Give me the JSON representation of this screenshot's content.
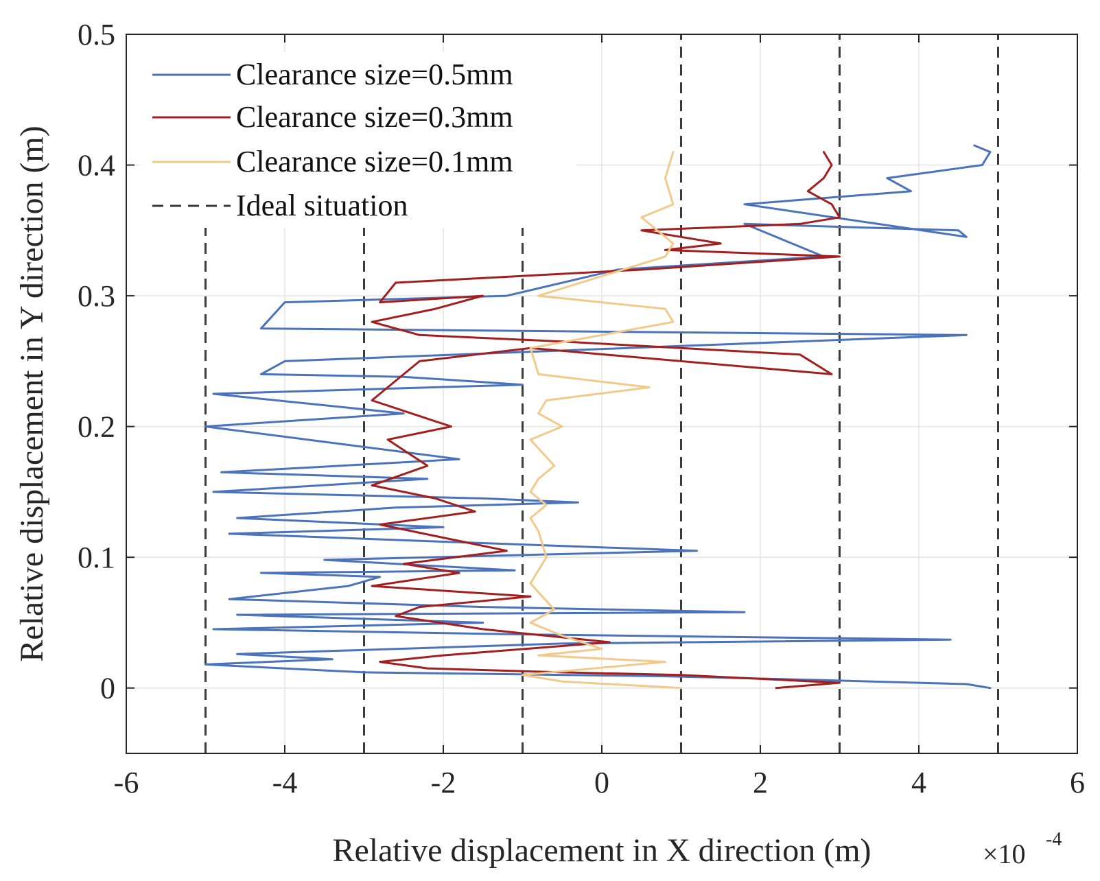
{
  "chart_data": {
    "type": "line",
    "xlabel": "Relative displacement in X direction (m)",
    "ylabel": "Relative displacement in Y direction (m)",
    "x_exponent": {
      "base": "×10",
      "power": "-4"
    },
    "xlim": [
      -6,
      6
    ],
    "ylim": [
      -0.05,
      0.5
    ],
    "x_ticks": [
      -6,
      -4,
      -2,
      0,
      2,
      4,
      6
    ],
    "x_tick_labels": [
      "-6",
      "-4",
      "-2",
      "0",
      "2",
      "4",
      "6"
    ],
    "y_ticks": [
      0,
      0.1,
      0.2,
      0.3,
      0.4,
      0.5
    ],
    "y_tick_labels": [
      "0",
      "0.1",
      "0.2",
      "0.3",
      "0.4",
      "0.5"
    ],
    "grid": true,
    "legend_position": "top-left",
    "series": [
      {
        "name": "Clearance size=0.5mm",
        "color": "#4a72bd",
        "style": "solid",
        "x": [
          4.9,
          4.6,
          2.8,
          0.8,
          -3.0,
          -5.0,
          -3.4,
          -4.6,
          -0.5,
          4.4,
          -1.0,
          -4.9,
          -1.5,
          -4.6,
          1.8,
          -1.5,
          -4.7,
          -3.2,
          -2.8,
          -4.3,
          -1.1,
          -3.5,
          1.2,
          -2.5,
          -4.7,
          -2.0,
          -4.6,
          -2.6,
          -0.3,
          -1.5,
          -4.9,
          -2.2,
          -4.8,
          -1.8,
          -5.0,
          -2.5,
          -4.9,
          -1.0,
          -2.5,
          -4.3,
          -4.0,
          4.6,
          -4.3,
          -4.0,
          -1.2,
          0.2,
          2.8,
          1.8,
          4.5,
          4.6,
          1.8,
          3.9,
          3.6,
          4.8,
          4.9,
          4.7
        ],
        "y": [
          0.0,
          0.003,
          0.006,
          0.009,
          0.012,
          0.018,
          0.022,
          0.026,
          0.034,
          0.037,
          0.041,
          0.045,
          0.05,
          0.056,
          0.058,
          0.062,
          0.068,
          0.078,
          0.085,
          0.088,
          0.09,
          0.098,
          0.105,
          0.113,
          0.118,
          0.123,
          0.13,
          0.138,
          0.142,
          0.145,
          0.15,
          0.16,
          0.165,
          0.175,
          0.2,
          0.21,
          0.225,
          0.232,
          0.238,
          0.24,
          0.25,
          0.27,
          0.275,
          0.295,
          0.3,
          0.32,
          0.33,
          0.355,
          0.35,
          0.345,
          0.37,
          0.38,
          0.39,
          0.4,
          0.41,
          0.415
        ]
      },
      {
        "name": "Clearance size=0.3mm",
        "color": "#a31f1f",
        "style": "solid",
        "x": [
          2.2,
          3.0,
          1.0,
          -0.5,
          -2.2,
          -2.8,
          -2.0,
          0.1,
          -1.5,
          -2.6,
          -2.3,
          -0.9,
          -2.9,
          -1.8,
          -2.5,
          -1.2,
          -2.0,
          -2.8,
          -1.6,
          -2.1,
          -2.9,
          -2.2,
          -2.7,
          -1.9,
          -2.4,
          -2.9,
          -2.6,
          -2.3,
          -0.9,
          2.9,
          2.5,
          -0.5,
          -2.3,
          -2.9,
          -2.1,
          -1.5,
          -2.8,
          -2.6,
          0.5,
          3.0,
          0.8,
          1.5,
          0.5,
          2.5,
          3.0,
          2.9,
          2.6,
          2.8,
          2.9,
          2.8
        ],
        "y": [
          0.0,
          0.004,
          0.01,
          0.012,
          0.015,
          0.02,
          0.025,
          0.035,
          0.045,
          0.055,
          0.062,
          0.07,
          0.078,
          0.088,
          0.095,
          0.105,
          0.115,
          0.125,
          0.135,
          0.145,
          0.155,
          0.17,
          0.19,
          0.2,
          0.21,
          0.22,
          0.235,
          0.25,
          0.26,
          0.24,
          0.255,
          0.265,
          0.27,
          0.28,
          0.29,
          0.3,
          0.295,
          0.31,
          0.32,
          0.33,
          0.335,
          0.34,
          0.35,
          0.355,
          0.36,
          0.37,
          0.38,
          0.39,
          0.4,
          0.41
        ]
      },
      {
        "name": "Clearance size=0.1mm",
        "color": "#f2c98a",
        "style": "solid",
        "x": [
          1.0,
          -0.5,
          -1.0,
          0.8,
          -0.8,
          0.0,
          -0.5,
          -0.9,
          -0.6,
          -0.9,
          -0.7,
          -0.8,
          -0.9,
          -0.7,
          -0.9,
          -0.8,
          -0.6,
          -0.9,
          -0.5,
          -0.8,
          -0.7,
          0.6,
          -0.8,
          -0.9,
          0.9,
          0.8,
          -0.8,
          0.8,
          0.9,
          0.5,
          0.9,
          0.8,
          0.9
        ],
        "y": [
          0.0,
          0.005,
          0.01,
          0.02,
          0.025,
          0.03,
          0.04,
          0.05,
          0.06,
          0.08,
          0.1,
          0.12,
          0.13,
          0.14,
          0.15,
          0.16,
          0.17,
          0.19,
          0.2,
          0.21,
          0.22,
          0.23,
          0.24,
          0.26,
          0.28,
          0.29,
          0.3,
          0.33,
          0.34,
          0.36,
          0.37,
          0.39,
          0.41
        ]
      }
    ],
    "reference_lines": {
      "name": "Ideal situation",
      "color": "#3a3a3a",
      "style": "dashed",
      "lines": [
        {
          "x": -5,
          "y_from": -0.05,
          "y_to": 0.375
        },
        {
          "x": -3,
          "y_from": -0.05,
          "y_to": 0.375
        },
        {
          "x": -1,
          "y_from": -0.05,
          "y_to": 0.375
        },
        {
          "x": 1,
          "y_from": -0.05,
          "y_to": 0.5
        },
        {
          "x": 3,
          "y_from": -0.05,
          "y_to": 0.5
        },
        {
          "x": 5,
          "y_from": -0.05,
          "y_to": 0.5
        }
      ]
    }
  }
}
